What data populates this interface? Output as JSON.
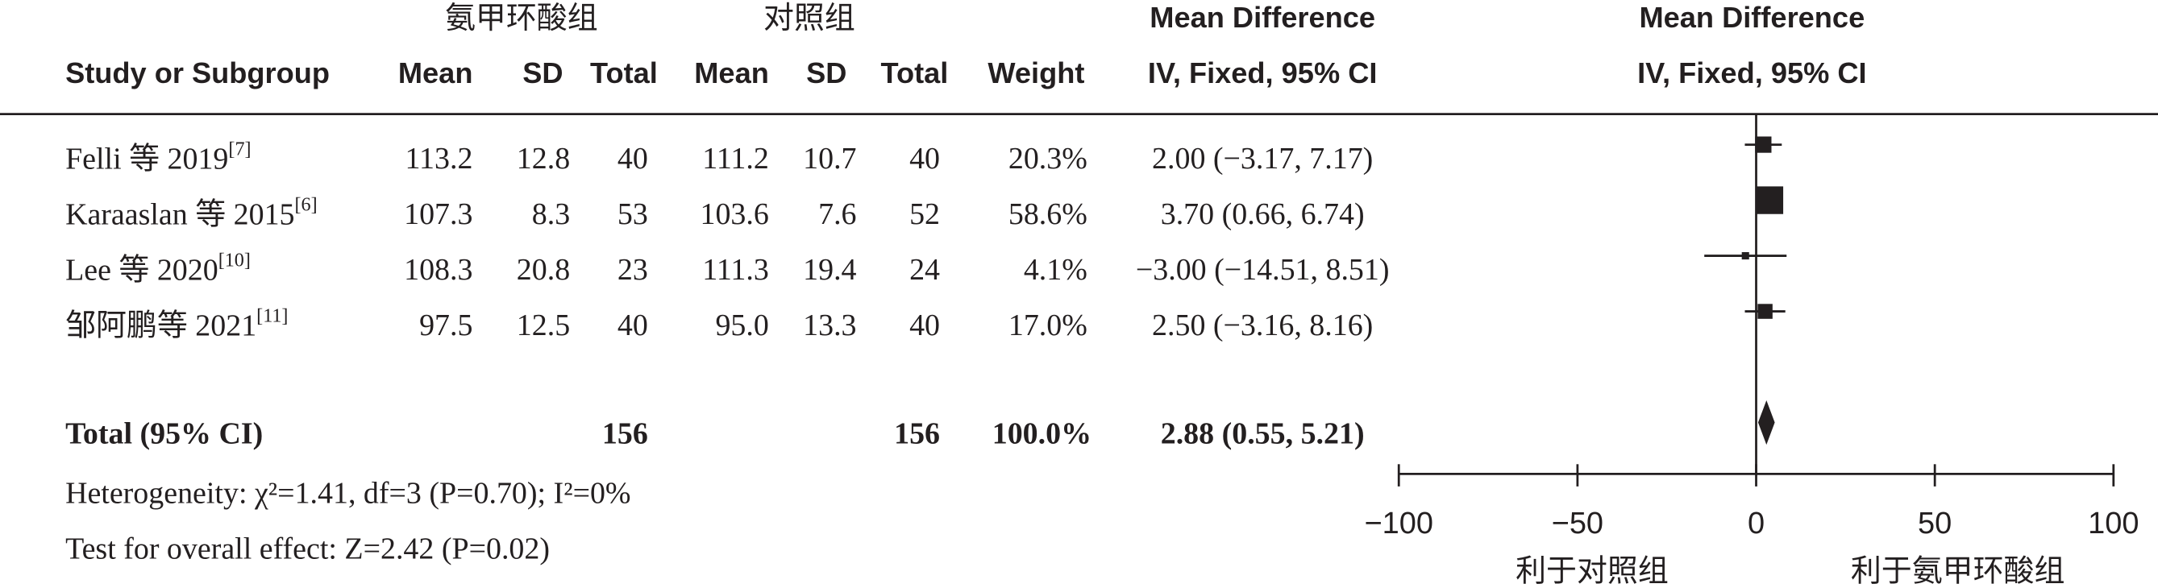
{
  "chart_data": {
    "type": "forest",
    "group_headers": [
      "氨甲环酸组",
      "对照组"
    ],
    "columns": [
      "Study or Subgroup",
      "Mean",
      "SD",
      "Total",
      "Mean",
      "SD",
      "Total",
      "Weight"
    ],
    "md_header": [
      "Mean Difference",
      "IV, Fixed, 95% CI"
    ],
    "plot_header": [
      "Mean Difference",
      "IV, Fixed, 95% CI"
    ],
    "studies": [
      {
        "name": "Felli 等 2019",
        "ref": "[7]",
        "exp": [
          "113.2",
          "12.8",
          "40"
        ],
        "ctl": [
          "111.2",
          "10.7",
          "40"
        ],
        "weight": 20.3,
        "weight_label": "20.3%",
        "md": 2.0,
        "ci": [
          -3.17,
          7.17
        ],
        "ci_label": "2.00 (−3.17, 7.17)"
      },
      {
        "name": "Karaaslan 等 2015",
        "ref": "[6]",
        "exp": [
          "107.3",
          "8.3",
          "53"
        ],
        "ctl": [
          "103.6",
          "7.6",
          "52"
        ],
        "weight": 58.6,
        "weight_label": "58.6%",
        "md": 3.7,
        "ci": [
          0.66,
          6.74
        ],
        "ci_label": "3.70 (0.66, 6.74)"
      },
      {
        "name": "Lee 等 2020",
        "ref": "[10]",
        "exp": [
          "108.3",
          "20.8",
          "23"
        ],
        "ctl": [
          "111.3",
          "19.4",
          "24"
        ],
        "weight": 4.1,
        "weight_label": "4.1%",
        "md": -3.0,
        "ci": [
          -14.51,
          8.51
        ],
        "ci_label": "−3.00 (−14.51, 8.51)"
      },
      {
        "name": "邹阿鹏等 2021",
        "ref": "[11]",
        "exp": [
          "97.5",
          "12.5",
          "40"
        ],
        "ctl": [
          "95.0",
          "13.3",
          "40"
        ],
        "weight": 17.0,
        "weight_label": "17.0%",
        "md": 2.5,
        "ci": [
          -3.16,
          8.16
        ],
        "ci_label": "2.50 (−3.16, 8.16)"
      }
    ],
    "total": {
      "name": "Total (95% CI)",
      "exp_total": "156",
      "ctl_total": "156",
      "weight_label": "100.0%",
      "md": 2.88,
      "ci": [
        0.55,
        5.21
      ],
      "ci_label": "2.88 (0.55, 5.21)"
    },
    "heterogeneity": "Heterogeneity: χ²=1.41, df=3 (P=0.70); I²=0%",
    "overall_effect": "Test for overall effect: Z=2.42 (P=0.02)",
    "xlim": [
      -100,
      100
    ],
    "xticks": [
      {
        "value": -100,
        "label": "−100"
      },
      {
        "value": -50,
        "label": "−50"
      },
      0,
      50,
      100
    ],
    "favours": [
      "利于对照组",
      "利于氨甲环酸组"
    ]
  }
}
